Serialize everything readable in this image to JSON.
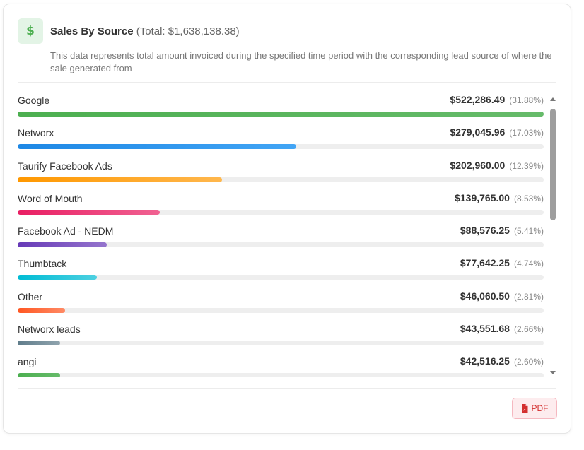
{
  "header": {
    "icon": "dollar-icon",
    "icon_glyph": "$",
    "title": "Sales By Source",
    "total": "(Total: $1,638,138.38)",
    "description": "This data represents total amount invoiced during the specified time period with the corresponding lead source of where the sale generated from"
  },
  "sources": [
    {
      "label": "Google",
      "amount": "$522,286.49",
      "percent": "(31.88%)",
      "fill": 1.0,
      "color_start": "#4caf50",
      "color_end": "#66bb6a"
    },
    {
      "label": "Networx",
      "amount": "$279,045.96",
      "percent": "(17.03%)",
      "fill": 0.53,
      "color_start": "#1e88e5",
      "color_end": "#42a5f5"
    },
    {
      "label": "Taurify Facebook Ads",
      "amount": "$202,960.00",
      "percent": "(12.39%)",
      "fill": 0.389,
      "color_start": "#ff9800",
      "color_end": "#ffb74d"
    },
    {
      "label": "Word of Mouth",
      "amount": "$139,765.00",
      "percent": "(8.53%)",
      "fill": 0.27,
      "color_start": "#e91e63",
      "color_end": "#f06292"
    },
    {
      "label": "Facebook Ad - NEDM",
      "amount": "$88,576.25",
      "percent": "(5.41%)",
      "fill": 0.17,
      "color_start": "#673ab7",
      "color_end": "#9575cd"
    },
    {
      "label": "Thumbtack",
      "amount": "$77,642.25",
      "percent": "(4.74%)",
      "fill": 0.151,
      "color_start": "#00bcd4",
      "color_end": "#4dd0e1"
    },
    {
      "label": "Other",
      "amount": "$46,060.50",
      "percent": "(2.81%)",
      "fill": 0.09,
      "color_start": "#ff5722",
      "color_end": "#ff8a65"
    },
    {
      "label": "Networx leads",
      "amount": "$43,551.68",
      "percent": "(2.66%)",
      "fill": 0.08,
      "color_start": "#607d8b",
      "color_end": "#90a4ae"
    },
    {
      "label": "angi",
      "amount": "$42,516.25",
      "percent": "(2.60%)",
      "fill": 0.08,
      "color_start": "#4caf50",
      "color_end": "#66bb6a"
    }
  ],
  "footer": {
    "pdf_label": "PDF",
    "pdf_icon": "pdf-file-icon"
  },
  "colors": {
    "accent_green": "#4caf50",
    "pdf_red": "#d32f2f"
  }
}
